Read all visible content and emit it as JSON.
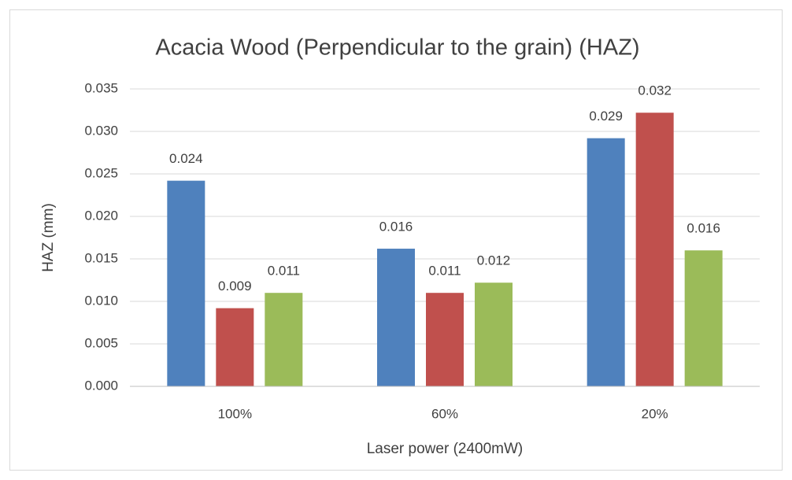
{
  "chart_data": {
    "type": "bar",
    "title": "Acacia Wood (Perpendicular to the grain) (HAZ)",
    "x_label": "Laser power (2400mW)",
    "y_label": "HAZ (mm)",
    "categories": [
      "100%",
      "60%",
      "20%"
    ],
    "series": [
      {
        "color": "#4f81bd",
        "values": [
          0.0242,
          0.0162,
          0.0292
        ],
        "value_labels": [
          "0.024",
          "0.016",
          "0.029"
        ]
      },
      {
        "color": "#c0504d",
        "values": [
          0.0092,
          0.011,
          0.0322
        ],
        "value_labels": [
          "0.009",
          "0.011",
          "0.032"
        ]
      },
      {
        "color": "#9bbb59",
        "values": [
          0.011,
          0.0122,
          0.016
        ],
        "value_labels": [
          "0.011",
          "0.012",
          "0.016"
        ]
      }
    ],
    "ylim": [
      0,
      0.035
    ],
    "yticks": [
      {
        "value": 0,
        "label": "0.000"
      },
      {
        "value": 0.005,
        "label": "0.005"
      },
      {
        "value": 0.01,
        "label": "0.010"
      },
      {
        "value": 0.015,
        "label": "0.015"
      },
      {
        "value": 0.02,
        "label": "0.020"
      },
      {
        "value": 0.025,
        "label": "0.025"
      },
      {
        "value": 0.03,
        "label": "0.030"
      },
      {
        "value": 0.035,
        "label": "0.035"
      }
    ],
    "grid": true
  }
}
